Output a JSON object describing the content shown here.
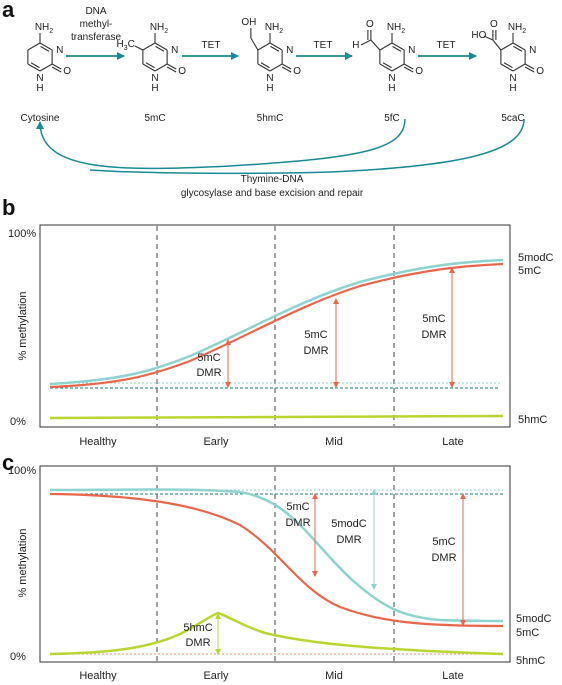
{
  "panel_a": {
    "letter": "a",
    "molecules": [
      {
        "name": "Cytosine",
        "substituent": ""
      },
      {
        "name": "5mC",
        "substituent": "H3C"
      },
      {
        "name": "5hmC",
        "substituent": "OH"
      },
      {
        "name": "5fC",
        "substituent": "O=CH"
      },
      {
        "name": "5caC",
        "substituent": "HOOC"
      }
    ],
    "atom_labels": {
      "nh2": "NH2",
      "n": "N",
      "h": "H",
      "o": "O",
      "oh": "OH",
      "ho": "HO",
      "h3c": "H3C"
    },
    "arrows": [
      {
        "label": "DNA methyl- transferase",
        "lines": [
          "DNA",
          "methyl-",
          "transferase"
        ]
      },
      {
        "label": "TET",
        "lines": [
          "TET"
        ]
      },
      {
        "label": "TET",
        "lines": [
          "TET"
        ]
      },
      {
        "label": "TET",
        "lines": [
          "TET"
        ]
      }
    ],
    "repair_label_line1": "Thymine-DNA",
    "repair_label_line2": "glycosylase and base excision and repair"
  },
  "panel_b": {
    "letter": "b",
    "ylabel": "% methylation",
    "y_top": "100%",
    "y_bottom": "0%",
    "stages": [
      "Healthy",
      "Early",
      "Mid",
      "Late"
    ],
    "series_labels": {
      "top_a": "5modC",
      "top_b": "5mC",
      "bottom": "5hmC"
    },
    "dmr_annotations": [
      {
        "line1": "5mC",
        "line2": "DMR"
      },
      {
        "line1": "5mC",
        "line2": "DMR"
      },
      {
        "line1": "5mC",
        "line2": "DMR"
      }
    ]
  },
  "panel_c": {
    "letter": "c",
    "ylabel": "% methylation",
    "y_top": "100%",
    "y_bottom": "0%",
    "stages": [
      "Healthy",
      "Early",
      "Mid",
      "Late"
    ],
    "series_labels": {
      "top_a": "5modC",
      "top_b": "5mC",
      "bottom": "5hmC"
    },
    "dmr_annotations": [
      {
        "line1": "5hmC",
        "line2": "DMR"
      },
      {
        "line1": "5mC",
        "line2": "DMR"
      },
      {
        "line1": "5modC",
        "line2": "DMR"
      },
      {
        "line1": "5mC",
        "line2": "DMR"
      }
    ]
  },
  "colors": {
    "teal_arrow": "#1a8a96",
    "mod_c": "#8fd3d1",
    "m_c": "#e8674a",
    "hm_c": "#b9d630",
    "dmr_orange": "#e8674a",
    "dmr_teal": "#8fd3d1",
    "dmr_green": "#b9d630",
    "dashed_divider": "#444444"
  }
}
